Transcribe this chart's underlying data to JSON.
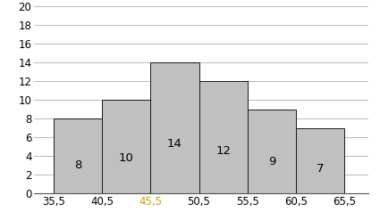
{
  "values": [
    8,
    10,
    14,
    12,
    9,
    7
  ],
  "bar_left_edges": [
    35.5,
    40.5,
    45.5,
    50.5,
    55.5,
    60.5
  ],
  "bar_width": 5.0,
  "xtick_labels": [
    "35,5",
    "40,5",
    "45,5",
    "50,5",
    "55,5",
    "60,5",
    "65,5"
  ],
  "xtick_positions": [
    35.5,
    40.5,
    45.5,
    50.5,
    55.5,
    60.5,
    65.5
  ],
  "ytick_values": [
    0,
    2,
    4,
    6,
    8,
    10,
    12,
    14,
    16,
    18,
    20
  ],
  "ylim": [
    0,
    20
  ],
  "xlim": [
    33.5,
    68.0
  ],
  "bar_color": "#c0c0c0",
  "bar_edgecolor": "#1a1a1a",
  "label_color": "#000000",
  "xtick_color_special": "#c8a000",
  "xtick_special_index": 2,
  "grid_color": "#b0b0b0",
  "background_color": "#ffffff",
  "label_fontsize": 9.5,
  "tick_fontsize": 8.5
}
